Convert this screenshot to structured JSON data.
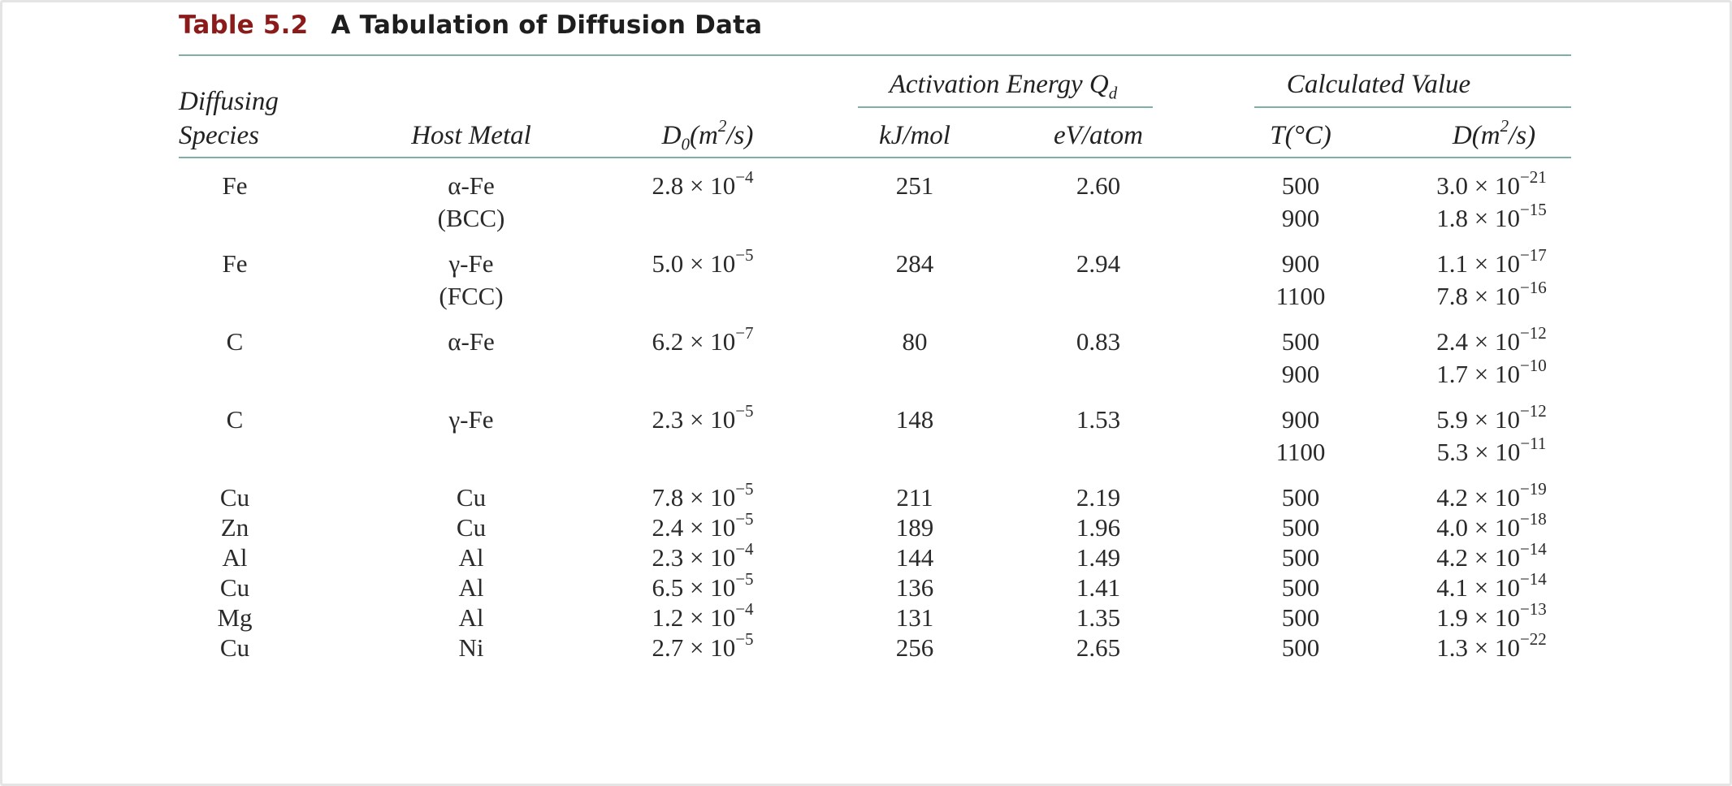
{
  "caption": {
    "label": "Table 5.2",
    "title": "A Tabulation of Diffusion Data"
  },
  "headers": {
    "species_line1": "Diffusing",
    "species_line2": "Species",
    "host": "Host Metal",
    "d0_main": "D",
    "d0_sub": "0",
    "d0_rest": "(m",
    "d0_sup": "2",
    "d0_end": "/s)",
    "activation_group_main": "Activation Energy Q",
    "activation_group_sub": "d",
    "kj": "kJ/mol",
    "ev": "eV/atom",
    "calc_group": "Calculated Value",
    "temp": "T(°C)",
    "d_main": "D(m",
    "d_sup": "2",
    "d_end": "/s)"
  },
  "rows": [
    {
      "species": "Fe",
      "host1": "α-Fe",
      "host2": "(BCC)",
      "d0_m": "2.8 × 10",
      "d0_e": "−4",
      "kj": "251",
      "ev": "2.60",
      "t1": "500",
      "d1_m": "3.0 × 10",
      "d1_e": "−21",
      "t2": "900",
      "d2_m": "1.8 × 10",
      "d2_e": "−15"
    },
    {
      "species": "Fe",
      "host1": "γ-Fe",
      "host2": "(FCC)",
      "d0_m": "5.0 × 10",
      "d0_e": "−5",
      "kj": "284",
      "ev": "2.94",
      "t1": "900",
      "d1_m": "1.1 × 10",
      "d1_e": "−17",
      "t2": "1100",
      "d2_m": "7.8 × 10",
      "d2_e": "−16"
    },
    {
      "species": "C",
      "host1": "α-Fe",
      "host2": "",
      "d0_m": "6.2 × 10",
      "d0_e": "−7",
      "kj": "80",
      "ev": "0.83",
      "t1": "500",
      "d1_m": "2.4 × 10",
      "d1_e": "−12",
      "t2": "900",
      "d2_m": "1.7 × 10",
      "d2_e": "−10"
    },
    {
      "species": "C",
      "host1": "γ-Fe",
      "host2": "",
      "d0_m": "2.3 × 10",
      "d0_e": "−5",
      "kj": "148",
      "ev": "1.53",
      "t1": "900",
      "d1_m": "5.9 × 10",
      "d1_e": "−12",
      "t2": "1100",
      "d2_m": "5.3 × 10",
      "d2_e": "−11"
    },
    {
      "species": "Cu",
      "host1": "Cu",
      "host2": "",
      "d0_m": "7.8 × 10",
      "d0_e": "−5",
      "kj": "211",
      "ev": "2.19",
      "t1": "500",
      "d1_m": "4.2 × 10",
      "d1_e": "−19",
      "t2": "",
      "d2_m": "",
      "d2_e": ""
    },
    {
      "species": "Zn",
      "host1": "Cu",
      "host2": "",
      "d0_m": "2.4 × 10",
      "d0_e": "−5",
      "kj": "189",
      "ev": "1.96",
      "t1": "500",
      "d1_m": "4.0 × 10",
      "d1_e": "−18",
      "t2": "",
      "d2_m": "",
      "d2_e": ""
    },
    {
      "species": "Al",
      "host1": "Al",
      "host2": "",
      "d0_m": "2.3 × 10",
      "d0_e": "−4",
      "kj": "144",
      "ev": "1.49",
      "t1": "500",
      "d1_m": "4.2 × 10",
      "d1_e": "−14",
      "t2": "",
      "d2_m": "",
      "d2_e": ""
    },
    {
      "species": "Cu",
      "host1": "Al",
      "host2": "",
      "d0_m": "6.5 × 10",
      "d0_e": "−5",
      "kj": "136",
      "ev": "1.41",
      "t1": "500",
      "d1_m": "4.1 × 10",
      "d1_e": "−14",
      "t2": "",
      "d2_m": "",
      "d2_e": ""
    },
    {
      "species": "Mg",
      "host1": "Al",
      "host2": "",
      "d0_m": "1.2 × 10",
      "d0_e": "−4",
      "kj": "131",
      "ev": "1.35",
      "t1": "500",
      "d1_m": "1.9 × 10",
      "d1_e": "−13",
      "t2": "",
      "d2_m": "",
      "d2_e": ""
    },
    {
      "species": "Cu",
      "host1": "Ni",
      "host2": "",
      "d0_m": "2.7 × 10",
      "d0_e": "−5",
      "kj": "256",
      "ev": "2.65",
      "t1": "500",
      "d1_m": "1.3 × 10",
      "d1_e": "−22",
      "t2": "",
      "d2_m": "",
      "d2_e": ""
    }
  ]
}
